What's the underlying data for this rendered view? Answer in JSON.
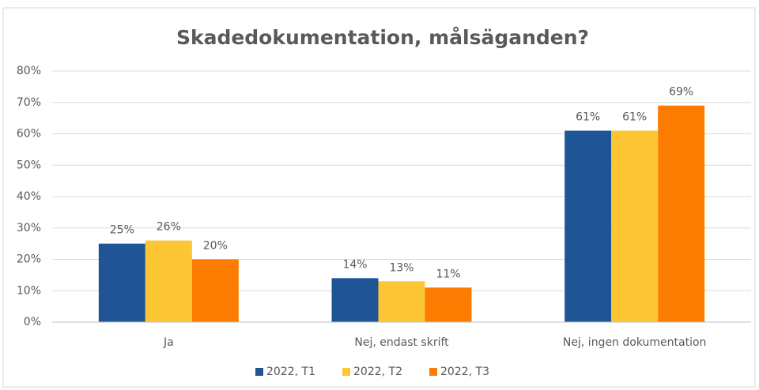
{
  "chart_data": {
    "type": "bar",
    "title": "Skadedokumentation, målsäganden?",
    "categories": [
      "Ja",
      "Nej, endast skrift",
      "Nej, ingen dokumentation"
    ],
    "series": [
      {
        "name": "2022, T1",
        "color": "#1f5597",
        "values": [
          25,
          14,
          61
        ],
        "value_labels": [
          "25%",
          "14%",
          "61%"
        ]
      },
      {
        "name": "2022, T2",
        "color": "#fcc634",
        "values": [
          26,
          13,
          61
        ],
        "value_labels": [
          "26%",
          "13%",
          "61%"
        ]
      },
      {
        "name": "2022, T3",
        "color": "#fb7c00",
        "values": [
          20,
          11,
          69
        ],
        "value_labels": [
          "20%",
          "11%",
          "69%"
        ]
      }
    ],
    "ylim": [
      0,
      80
    ],
    "yticks": [
      {
        "value": 0,
        "label": "0%"
      },
      {
        "value": 10,
        "label": "10%"
      },
      {
        "value": 20,
        "label": "20%"
      },
      {
        "value": 30,
        "label": "30%"
      },
      {
        "value": 40,
        "label": "40%"
      },
      {
        "value": 50,
        "label": "50%"
      },
      {
        "value": 60,
        "label": "60%"
      },
      {
        "value": 70,
        "label": "70%"
      },
      {
        "value": 80,
        "label": "80%"
      }
    ],
    "grid": true,
    "legend": "bottom"
  }
}
